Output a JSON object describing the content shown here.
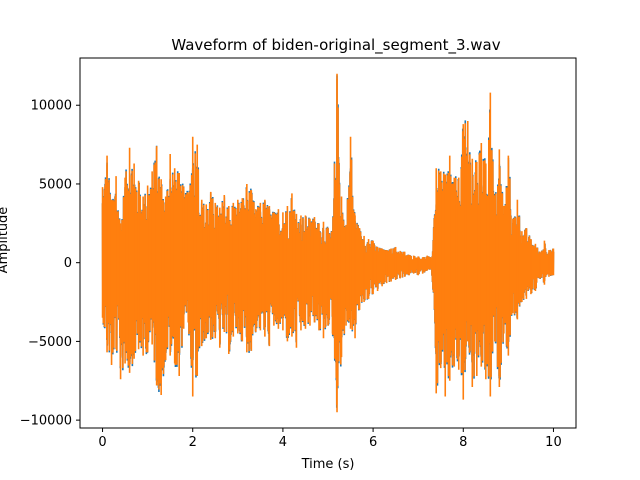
{
  "chart_data": {
    "type": "line",
    "title": "Waveform of biden-original_segment_3.wav",
    "xlabel": "Time (s)",
    "ylabel": "Amplitude",
    "xlim": [
      -0.5,
      10.5
    ],
    "ylim": [
      -10500,
      13000
    ],
    "xticks": [
      0,
      2,
      4,
      6,
      8,
      10
    ],
    "xtick_labels": [
      "0",
      "2",
      "4",
      "6",
      "8",
      "10"
    ],
    "yticks": [
      -10000,
      -5000,
      0,
      5000,
      10000
    ],
    "ytick_labels": [
      "−10000",
      "−5000",
      "0",
      "5000",
      "10000"
    ],
    "grid": false,
    "legend": "none",
    "series": [
      {
        "color": "#1f77b4",
        "x": [
          0,
          10
        ],
        "y": [
          0,
          0
        ]
      },
      {
        "color": "#ff7f0e",
        "envelope_x": [
          0.0,
          0.1,
          0.2,
          0.3,
          0.4,
          0.5,
          0.6,
          0.7,
          0.8,
          0.9,
          1.0,
          1.1,
          1.2,
          1.3,
          1.4,
          1.5,
          1.6,
          1.7,
          1.8,
          1.9,
          2.0,
          2.1,
          2.2,
          2.3,
          2.4,
          2.5,
          2.6,
          2.7,
          2.8,
          2.9,
          3.0,
          3.1,
          3.2,
          3.3,
          3.4,
          3.5,
          3.6,
          3.7,
          3.8,
          3.9,
          4.0,
          4.1,
          4.2,
          4.3,
          4.4,
          4.5,
          4.6,
          4.7,
          4.8,
          4.9,
          5.0,
          5.1,
          5.2,
          5.3,
          5.4,
          5.5,
          5.6,
          5.7,
          5.8,
          5.9,
          6.0,
          6.1,
          6.2,
          6.3,
          6.4,
          6.5,
          6.6,
          6.7,
          6.8,
          6.9,
          7.0,
          7.1,
          7.2,
          7.3,
          7.4,
          7.5,
          7.6,
          7.7,
          7.8,
          7.9,
          8.0,
          8.1,
          8.2,
          8.3,
          8.4,
          8.5,
          8.6,
          8.7,
          8.8,
          8.9,
          9.0,
          9.1,
          9.2,
          9.3,
          9.4,
          9.5,
          9.6,
          9.7,
          9.8,
          9.9,
          10.0
        ],
        "envelope_max": [
          4800,
          6800,
          4000,
          5500,
          2500,
          5400,
          7300,
          6300,
          5200,
          4200,
          4900,
          5800,
          7400,
          5300,
          4200,
          6900,
          6000,
          5700,
          4800,
          4400,
          8000,
          7500,
          4000,
          3700,
          4500,
          3800,
          3500,
          4300,
          3600,
          3800,
          4000,
          4100,
          5000,
          4600,
          3400,
          3800,
          4000,
          3600,
          3200,
          3400,
          3200,
          3600,
          4400,
          3100,
          3000,
          3000,
          2800,
          2900,
          2500,
          2600,
          2200,
          2000,
          12000,
          4200,
          2400,
          8000,
          3000,
          2200,
          1700,
          1500,
          1400,
          1000,
          900,
          800,
          900,
          1000,
          750,
          700,
          500,
          450,
          400,
          350,
          450,
          300,
          6000,
          5800,
          5600,
          6800,
          5400,
          5400,
          8800,
          9000,
          6600,
          6400,
          7600,
          6300,
          10800,
          3800,
          7200,
          3600,
          6800,
          2800,
          4000,
          2000,
          2200,
          1500,
          1200,
          700,
          1400,
          800,
          900
        ],
        "envelope_min": [
          -3500,
          -5700,
          -6500,
          -5500,
          -7400,
          -6400,
          -7000,
          -6100,
          -5500,
          -5900,
          -5700,
          -5200,
          -7800,
          -8400,
          -6200,
          -5900,
          -6400,
          -7200,
          -4200,
          -3800,
          -8500,
          -7200,
          -5300,
          -4800,
          -4900,
          -4800,
          -5400,
          -4400,
          -5800,
          -4700,
          -4500,
          -5000,
          -5700,
          -5600,
          -4400,
          -4300,
          -4700,
          -5300,
          -4000,
          -4200,
          -4300,
          -5000,
          -4700,
          -5400,
          -4300,
          -4200,
          -4000,
          -3800,
          -4300,
          -4800,
          -4000,
          -4500,
          -9500,
          -6000,
          -4000,
          -4200,
          -4800,
          -3000,
          -2500,
          -2300,
          -2000,
          -1800,
          -1500,
          -1300,
          -1200,
          -1100,
          -1000,
          -900,
          -800,
          -700,
          -800,
          -700,
          -500,
          -400,
          -8300,
          -6700,
          -8500,
          -7500,
          -6600,
          -6800,
          -8700,
          -5000,
          -7900,
          -7200,
          -6600,
          -7400,
          -8500,
          -5000,
          -7900,
          -4500,
          -5900,
          -3200,
          -3600,
          -2500,
          -2300,
          -2000,
          -1800,
          -1000,
          -1400,
          -900,
          -800
        ]
      }
    ]
  }
}
